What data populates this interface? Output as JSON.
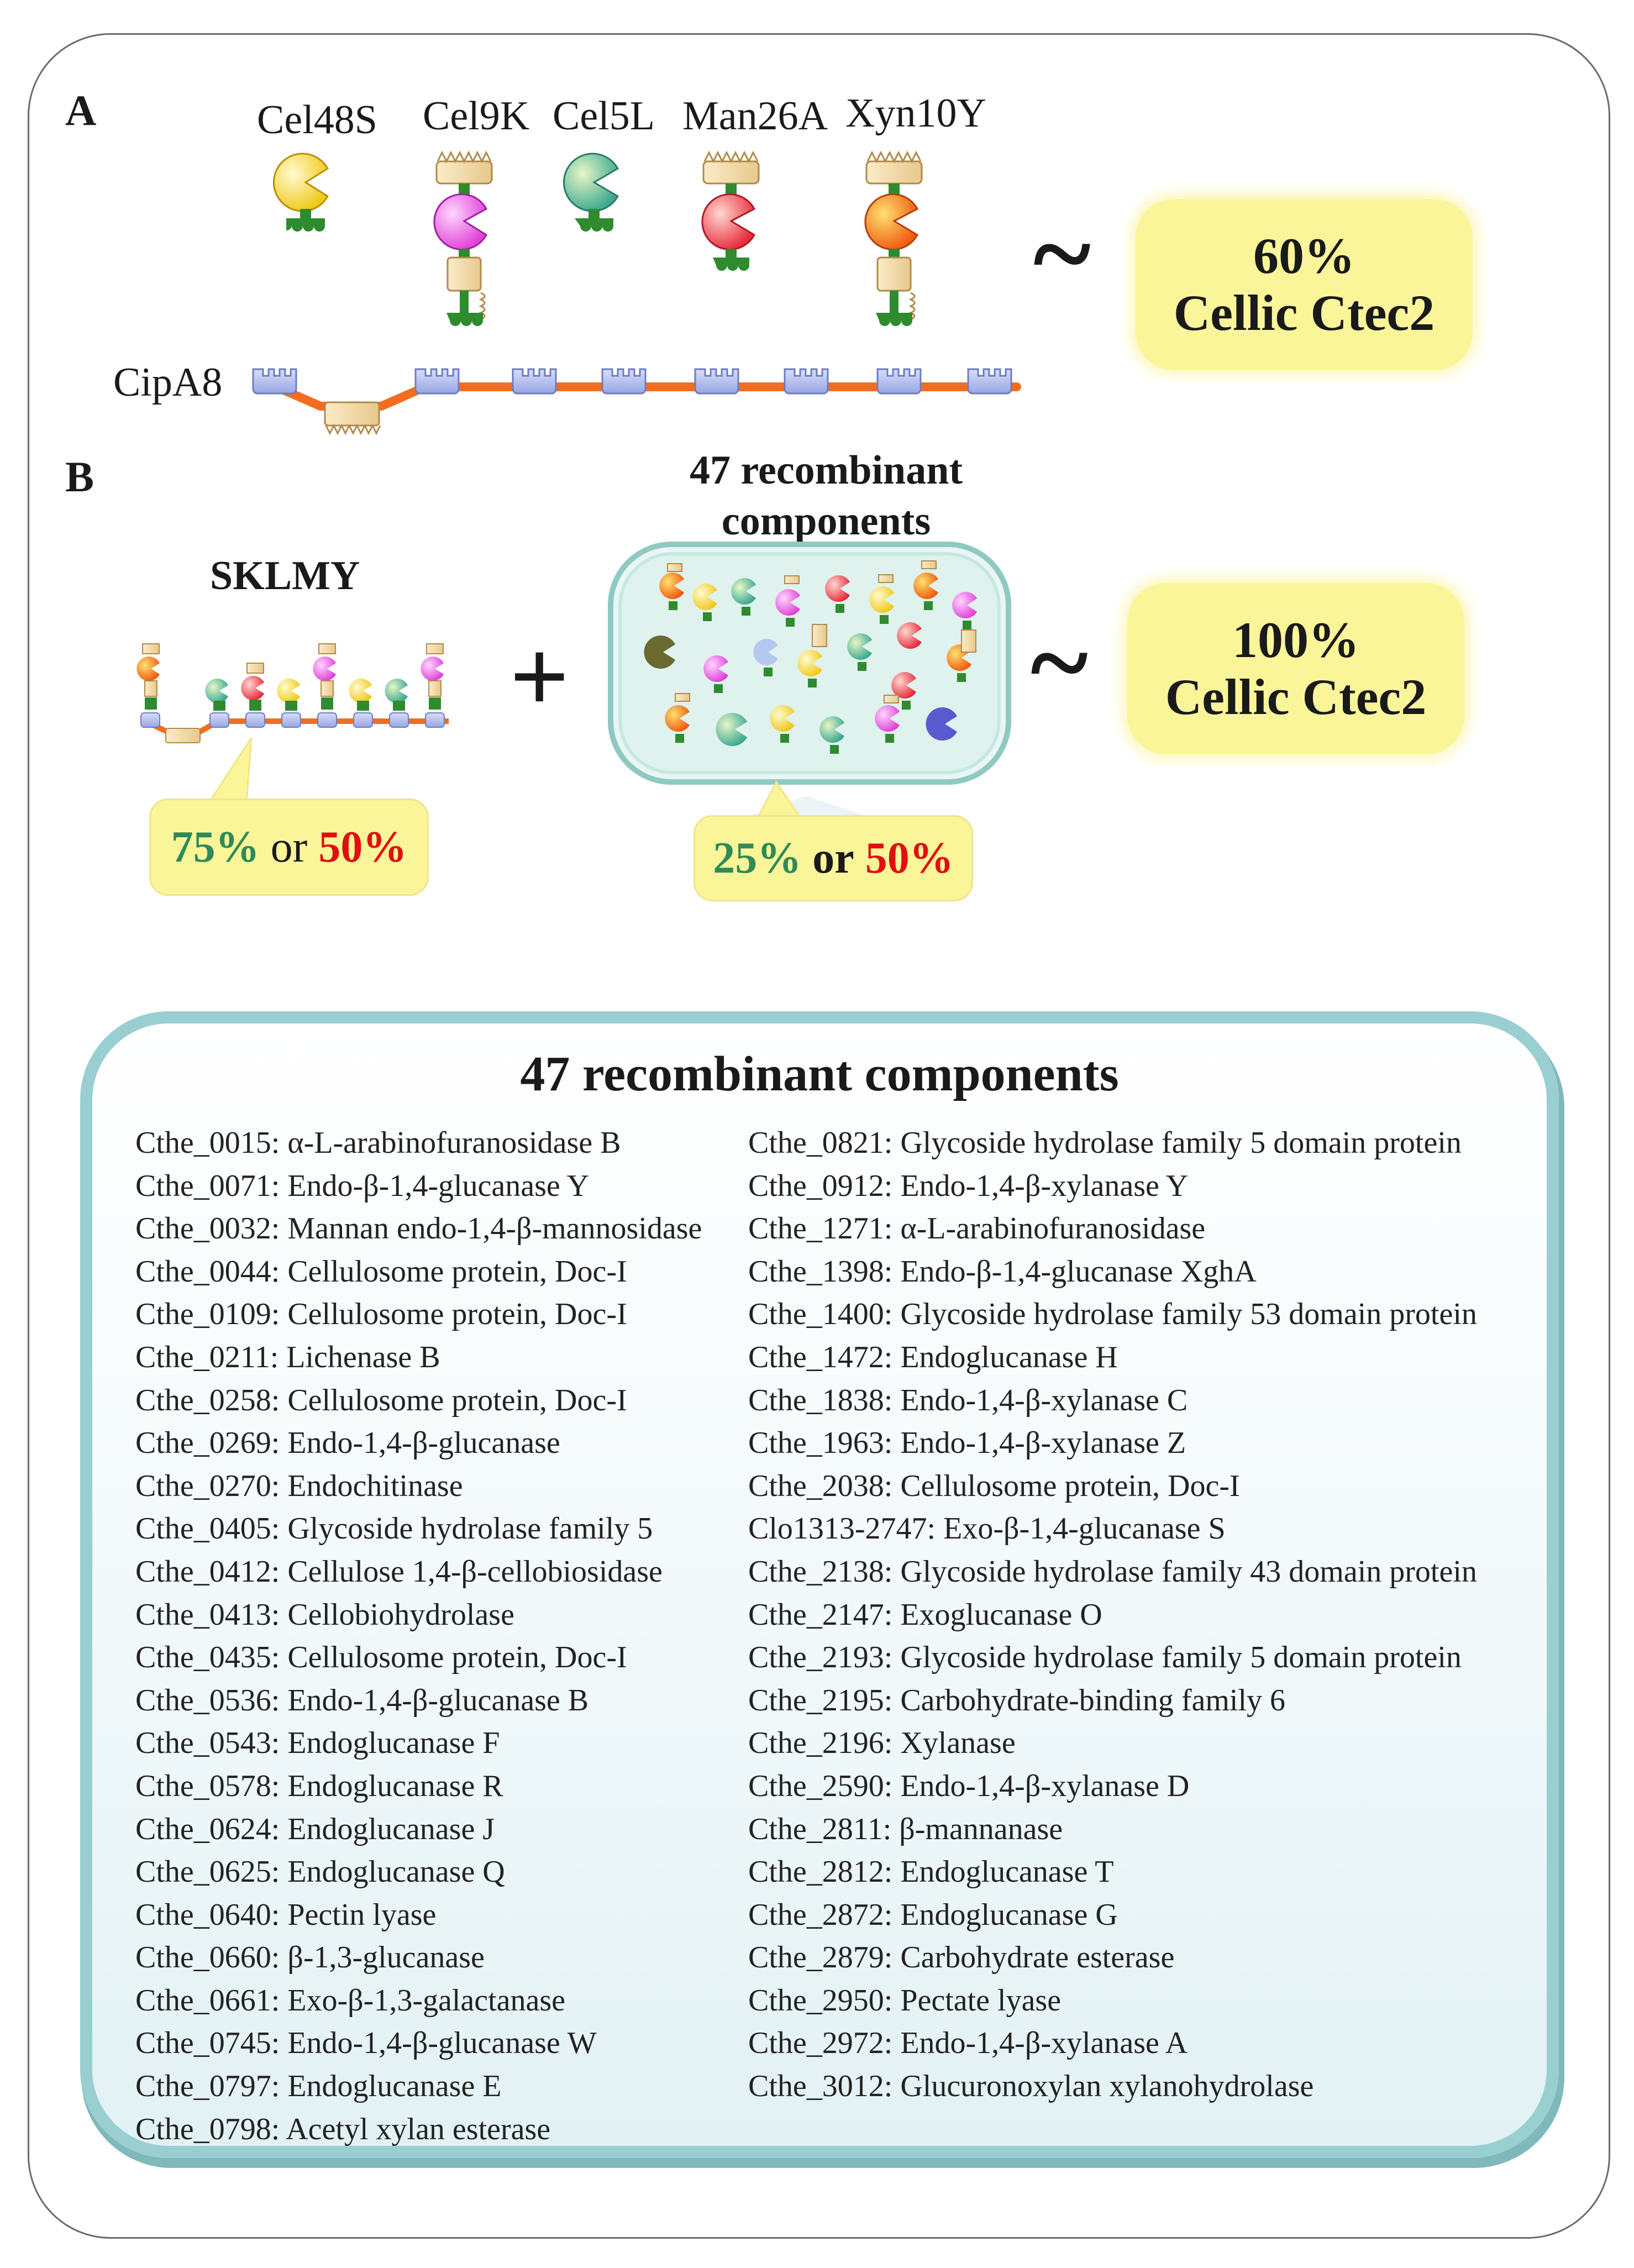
{
  "panel_a": {
    "label": "A",
    "enzymes": [
      "Cel48S",
      "Cel9K",
      "Cel5L",
      "Man26A",
      "Xyn10Y"
    ],
    "scaffold": "CipA8",
    "result": {
      "percent": "60%",
      "name": "Cellic Ctec2"
    }
  },
  "panel_b": {
    "label": "B",
    "complex": "SKLMY",
    "mixture_title": "47 recombinant components",
    "plus": "+",
    "tilde": "~",
    "result": {
      "percent": "100%",
      "name": "Cellic Ctec2"
    },
    "complex_ratio": {
      "a": "75%",
      "or": "or",
      "b": "50%"
    },
    "mixture_ratio": {
      "a": "25%",
      "or": "or",
      "b": "50%"
    }
  },
  "list": {
    "title": "47 recombinant components",
    "left": [
      "Cthe_0015: α-L-arabinofuranosidase B",
      "Cthe_0071: Endo-β-1,4-glucanase Y",
      "Cthe_0032: Mannan endo-1,4-β-mannosidase",
      "Cthe_0044: Cellulosome protein, Doc-I",
      "Cthe_0109: Cellulosome protein, Doc-I",
      "Cthe_0211: Lichenase B",
      "Cthe_0258: Cellulosome protein, Doc-I",
      "Cthe_0269: Endo-1,4-β-glucanase",
      "Cthe_0270: Endochitinase",
      "Cthe_0405: Glycoside hydrolase family 5",
      "Cthe_0412: Cellulose 1,4-β-cellobiosidase",
      "Cthe_0413: Cellobiohydrolase",
      "Cthe_0435: Cellulosome protein, Doc-I",
      "Cthe_0536: Endo-1,4-β-glucanase B",
      "Cthe_0543: Endoglucanase F",
      "Cthe_0578: Endoglucanase R",
      "Cthe_0624: Endoglucanase J",
      "Cthe_0625: Endoglucanase Q",
      "Cthe_0640: Pectin lyase",
      "Cthe_0660: β-1,3-glucanase",
      "Cthe_0661: Exo-β-1,3-galactanase",
      "Cthe_0745: Endo-1,4-β-glucanase W",
      "Cthe_0797: Endoglucanase E",
      "Cthe_0798: Acetyl xylan esterase"
    ],
    "right": [
      "Cthe_0821: Glycoside hydrolase family 5 domain protein",
      "Cthe_0912: Endo-1,4-β-xylanase Y",
      "Cthe_1271: α-L-arabinofuranosidase",
      "Cthe_1398: Endo-β-1,4-glucanase XghA",
      "Cthe_1400: Glycoside hydrolase family 53 domain protein",
      "Cthe_1472: Endoglucanase H",
      "Cthe_1838: Endo-1,4-β-xylanase C",
      "Cthe_1963: Endo-1,4-β-xylanase Z",
      "Cthe_2038: Cellulosome protein, Doc-I",
      "Clo1313-2747: Exo-β-1,4-glucanase S",
      "Cthe_2138: Glycoside hydrolase family 43 domain protein",
      "Cthe_2147: Exoglucanase O",
      "Cthe_2193: Glycoside hydrolase family 5 domain protein",
      "Cthe_2195: Carbohydrate-binding family 6",
      "Cthe_2196: Xylanase",
      "Cthe_2590: Endo-1,4-β-xylanase D",
      "Cthe_2811: β-mannanase",
      "Cthe_2812: Endoglucanase T",
      "Cthe_2872: Endoglucanase G",
      "Cthe_2879: Carbohydrate esterase",
      "Cthe_2950: Pectate lyase",
      "Cthe_2972: Endo-1,4-β-xylanase A",
      "Cthe_3012: Glucuronoxylan xylanohydrolase"
    ]
  },
  "colors": {
    "linker": "#f26d1f",
    "cohesin": "#aab7ec",
    "cbm": "#f3dcb0",
    "dockerin": "#2e8b2e",
    "panel_border": "#99cfd1",
    "callout": "#fbf59a",
    "green_pct": "#2e8b57",
    "red_pct": "#e01010"
  }
}
